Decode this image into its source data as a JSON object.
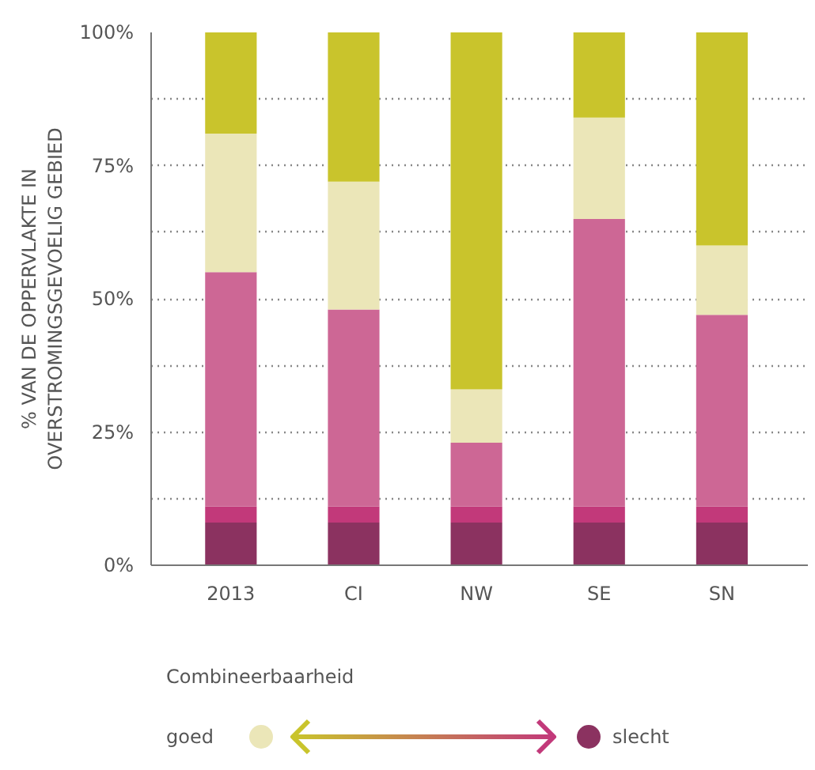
{
  "chart_data": {
    "type": "bar",
    "stacked": true,
    "ylabel": "% VAN DE OPPERVLAKTE IN\nOVERSTROMINGSGEVOELIG GEBIED",
    "categories": [
      "2013",
      "CI",
      "NW",
      "SE",
      "SN"
    ],
    "series": [
      {
        "color": "#8b3260",
        "values": [
          8,
          8,
          8,
          8,
          8
        ]
      },
      {
        "color": "#c2397a",
        "values": [
          3,
          3,
          3,
          3,
          3
        ]
      },
      {
        "color": "#cd6795",
        "values": [
          44,
          37,
          12,
          54,
          36
        ]
      },
      {
        "color": "#ebe6b8",
        "values": [
          26,
          24,
          10,
          19,
          13
        ]
      },
      {
        "color": "#c9c42c",
        "values": [
          19,
          28,
          67,
          16,
          40
        ]
      }
    ],
    "ylim": [
      0,
      100
    ],
    "yticks": [
      {
        "value": 0,
        "label": "0%"
      },
      {
        "value": 12.5,
        "label": null
      },
      {
        "value": 25,
        "label": "25%"
      },
      {
        "value": 37.5,
        "label": null
      },
      {
        "value": 50,
        "label": "50%"
      },
      {
        "value": 62.5,
        "label": null
      },
      {
        "value": 75,
        "label": "75%"
      },
      {
        "value": 87.5,
        "label": null
      },
      {
        "value": 100,
        "label": "100%"
      }
    ],
    "grid": "y",
    "legend_title": "Combineerbaarheid",
    "annotations": [
      "goed",
      "slecht"
    ]
  }
}
